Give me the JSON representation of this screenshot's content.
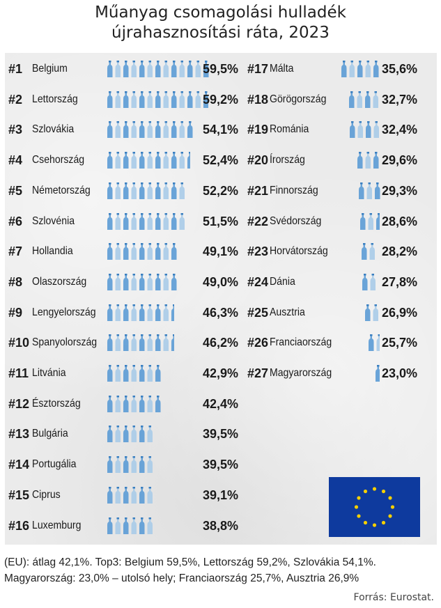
{
  "title_line1": "Műanyag csomagolási hulladék",
  "title_line2": "újrahasznosítási ráta, 2023",
  "footer_line1": "(EU): átlag 42,1%. Top3: Belgium 59,5%, Lettország 59,2%, Szlovákia 54,1%.",
  "footer_line2": "Magyarország: 23,0% – utolsó hely; Franciaország 25,7%, Ausztria 26,9%",
  "source": "Forrás: Eurostat.",
  "flag_icon": "eu-flag-icon",
  "colors": {
    "bar": "#5b9bd5",
    "bar_light": "#a9cbe8",
    "flag_blue": "#0e3a9e",
    "flag_star": "#f5d000"
  },
  "chart_data": {
    "type": "bar",
    "title": "Műanyag csomagolási hulladék újrahasznosítási ráta, 2023",
    "unit": "%",
    "items": [
      {
        "rank": "#1",
        "country": "Belgium",
        "value": 59.5,
        "label": "59,5%"
      },
      {
        "rank": "#2",
        "country": "Lettország",
        "value": 59.2,
        "label": "59,2%"
      },
      {
        "rank": "#3",
        "country": "Szlovákia",
        "value": 54.1,
        "label": "54,1%"
      },
      {
        "rank": "#4",
        "country": "Csehország",
        "value": 52.4,
        "label": "52,4%"
      },
      {
        "rank": "#5",
        "country": "Németország",
        "value": 52.2,
        "label": "52,2%"
      },
      {
        "rank": "#6",
        "country": "Szlovénia",
        "value": 51.5,
        "label": "51,5%"
      },
      {
        "rank": "#7",
        "country": "Hollandia",
        "value": 49.1,
        "label": "49,1%"
      },
      {
        "rank": "#8",
        "country": "Olaszország",
        "value": 49.0,
        "label": "49,0%"
      },
      {
        "rank": "#9",
        "country": "Lengyelország",
        "value": 46.3,
        "label": "46,3%"
      },
      {
        "rank": "#10",
        "country": "Spanyolország",
        "value": 46.2,
        "label": "46,2%"
      },
      {
        "rank": "#11",
        "country": "Litvánia",
        "value": 42.9,
        "label": "42,9%"
      },
      {
        "rank": "#12",
        "country": "Észtország",
        "value": 42.4,
        "label": "42,4%"
      },
      {
        "rank": "#13",
        "country": "Bulgária",
        "value": 39.5,
        "label": "39,5%"
      },
      {
        "rank": "#14",
        "country": "Portugália",
        "value": 39.5,
        "label": "39,5%"
      },
      {
        "rank": "#15",
        "country": "Ciprus",
        "value": 39.1,
        "label": "39,1%"
      },
      {
        "rank": "#16",
        "country": "Luxemburg",
        "value": 38.8,
        "label": "38,8%"
      },
      {
        "rank": "#17",
        "country": "Málta",
        "value": 35.6,
        "label": "35,6%"
      },
      {
        "rank": "#18",
        "country": "Görögország",
        "value": 32.7,
        "label": "32,7%"
      },
      {
        "rank": "#19",
        "country": "Románia",
        "value": 32.4,
        "label": "32,4%"
      },
      {
        "rank": "#20",
        "country": "Írország",
        "value": 29.6,
        "label": "29,6%"
      },
      {
        "rank": "#21",
        "country": "Finnország",
        "value": 29.3,
        "label": "29,3%"
      },
      {
        "rank": "#22",
        "country": "Svédország",
        "value": 28.6,
        "label": "28,6%"
      },
      {
        "rank": "#23",
        "country": "Horvátország",
        "value": 28.2,
        "label": "28,2%"
      },
      {
        "rank": "#24",
        "country": "Dánia",
        "value": 27.8,
        "label": "27,8%"
      },
      {
        "rank": "#25",
        "country": "Ausztria",
        "value": 26.9,
        "label": "26,9%"
      },
      {
        "rank": "#26",
        "country": "Franciaország",
        "value": 25.7,
        "label": "25,7%"
      },
      {
        "rank": "#27",
        "country": "Magyarország",
        "value": 23.0,
        "label": "23,0%"
      }
    ]
  }
}
